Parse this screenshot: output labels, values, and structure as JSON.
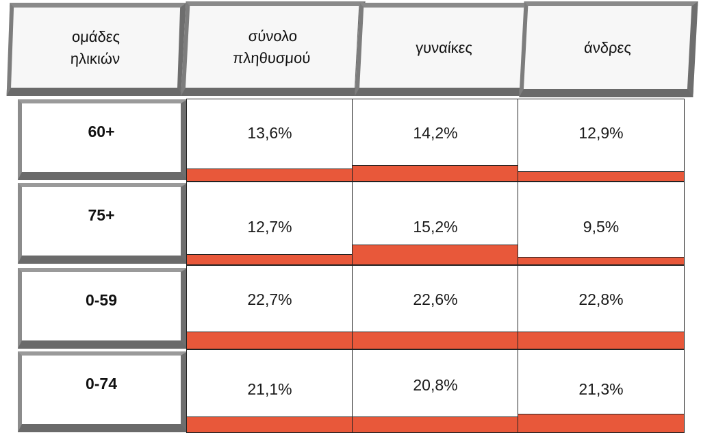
{
  "chart_data": {
    "type": "table",
    "columns": [
      "ομάδες\nηλικιών",
      "σύνολο\nπληθυσμού",
      "γυναίκες",
      "άνδρες"
    ],
    "rows": [
      {
        "label": "60+",
        "values": [
          "13,6%",
          "14,2%",
          "12,9%"
        ],
        "numbers": [
          13.6,
          14.2,
          12.9
        ]
      },
      {
        "label": "75+",
        "values": [
          "12,7%",
          "15,2%",
          "9,5%"
        ],
        "numbers": [
          12.7,
          15.2,
          9.5
        ]
      },
      {
        "label": "0-59",
        "values": [
          "22,7%",
          "22,6%",
          "22,8%"
        ],
        "numbers": [
          22.7,
          22.6,
          22.8
        ]
      },
      {
        "label": "0-74",
        "values": [
          "21,1%",
          "20,8%",
          "21,3%"
        ],
        "numbers": [
          21.1,
          20.8,
          21.3
        ]
      }
    ]
  },
  "colors": {
    "bar": "#e8583a",
    "frame": "#6e6e6e"
  }
}
